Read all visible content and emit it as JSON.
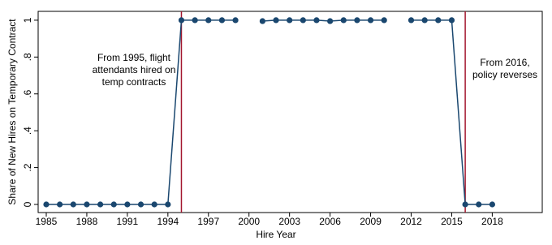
{
  "chart_data": {
    "type": "line",
    "x_label": "Hire Year",
    "y_label": "Share of New Hires on Temporary Contract",
    "x": [
      1985,
      1986,
      1987,
      1988,
      1989,
      1990,
      1991,
      1992,
      1993,
      1994,
      1995,
      1996,
      1997,
      1998,
      1999,
      2000,
      2001,
      2002,
      2003,
      2004,
      2005,
      2006,
      2007,
      2008,
      2009,
      2010,
      2011,
      2012,
      2013,
      2014,
      2015,
      2016,
      2017,
      2018
    ],
    "series": [
      {
        "color": "#1a476f",
        "values": [
          0,
          0,
          0,
          0,
          0,
          0,
          0,
          0,
          0,
          0,
          1,
          1,
          1,
          1,
          1,
          null,
          0.995,
          1,
          1,
          1,
          1,
          0.995,
          1,
          1,
          1,
          1,
          null,
          1,
          1,
          1,
          1,
          0,
          0,
          0
        ]
      }
    ],
    "xlim": [
      1984.4,
      2021.7
    ],
    "xticks": [
      1985,
      1988,
      1991,
      1994,
      1997,
      2000,
      2003,
      2006,
      2009,
      2012,
      2015,
      2018
    ],
    "ylim": [
      -0.044,
      1.048
    ],
    "yticks": [
      0,
      {
        "value": 0.2,
        "label": ".2"
      },
      {
        "value": 0.4,
        "label": ".4"
      },
      {
        "value": 0.6,
        "label": ".6"
      },
      {
        "value": 0.8,
        "label": ".8"
      },
      1
    ],
    "reference_lines": [
      1995,
      2016
    ],
    "reference_color": "#a3172e",
    "annotations": [
      [
        "From 1995, flight",
        "attendants hired on",
        "temp contracts"
      ],
      [
        "From 2016,",
        "policy reverses"
      ]
    ]
  }
}
